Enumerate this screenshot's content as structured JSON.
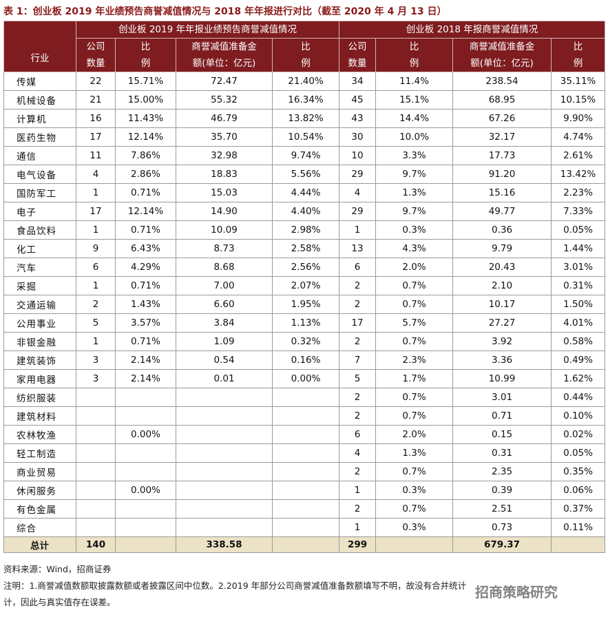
{
  "title": "表 1：创业板 2019 年业绩预告商誉减值情况与 2018 年年报进行对比（截至 2020 年 4 月 13 日）",
  "table": {
    "group_headers": [
      "创业板 2019 年年报业绩预告商誉减值情况",
      "创业板 2018 年报商誉减值情况"
    ],
    "columns": [
      [
        "行业"
      ],
      [
        "公司",
        "数量"
      ],
      [
        "比",
        "例"
      ],
      [
        "商誉减值准备金",
        "额(单位：亿元)"
      ],
      [
        "比",
        "例"
      ],
      [
        "公司",
        "数量"
      ],
      [
        "比",
        "例"
      ],
      [
        "商誉减值准备金",
        "额(单位：亿元)"
      ],
      [
        "比",
        "例"
      ]
    ],
    "rows": [
      [
        "传媒",
        "22",
        "15.71%",
        "72.47",
        "21.40%",
        "34",
        "11.4%",
        "238.54",
        "35.11%"
      ],
      [
        "机械设备",
        "21",
        "15.00%",
        "55.32",
        "16.34%",
        "45",
        "15.1%",
        "68.95",
        "10.15%"
      ],
      [
        "计算机",
        "16",
        "11.43%",
        "46.79",
        "13.82%",
        "43",
        "14.4%",
        "67.26",
        "9.90%"
      ],
      [
        "医药生物",
        "17",
        "12.14%",
        "35.70",
        "10.54%",
        "30",
        "10.0%",
        "32.17",
        "4.74%"
      ],
      [
        "通信",
        "11",
        "7.86%",
        "32.98",
        "9.74%",
        "10",
        "3.3%",
        "17.73",
        "2.61%"
      ],
      [
        "电气设备",
        "4",
        "2.86%",
        "18.83",
        "5.56%",
        "29",
        "9.7%",
        "91.20",
        "13.42%"
      ],
      [
        "国防军工",
        "1",
        "0.71%",
        "15.03",
        "4.44%",
        "4",
        "1.3%",
        "15.16",
        "2.23%"
      ],
      [
        "电子",
        "17",
        "12.14%",
        "14.90",
        "4.40%",
        "29",
        "9.7%",
        "49.77",
        "7.33%"
      ],
      [
        "食品饮料",
        "1",
        "0.71%",
        "10.09",
        "2.98%",
        "1",
        "0.3%",
        "0.36",
        "0.05%"
      ],
      [
        "化工",
        "9",
        "6.43%",
        "8.73",
        "2.58%",
        "13",
        "4.3%",
        "9.79",
        "1.44%"
      ],
      [
        "汽车",
        "6",
        "4.29%",
        "8.68",
        "2.56%",
        "6",
        "2.0%",
        "20.43",
        "3.01%"
      ],
      [
        "采掘",
        "1",
        "0.71%",
        "7.00",
        "2.07%",
        "2",
        "0.7%",
        "2.10",
        "0.31%"
      ],
      [
        "交通运输",
        "2",
        "1.43%",
        "6.60",
        "1.95%",
        "2",
        "0.7%",
        "10.17",
        "1.50%"
      ],
      [
        "公用事业",
        "5",
        "3.57%",
        "3.84",
        "1.13%",
        "17",
        "5.7%",
        "27.27",
        "4.01%"
      ],
      [
        "非银金融",
        "1",
        "0.71%",
        "1.09",
        "0.32%",
        "2",
        "0.7%",
        "3.92",
        "0.58%"
      ],
      [
        "建筑装饰",
        "3",
        "2.14%",
        "0.54",
        "0.16%",
        "7",
        "2.3%",
        "3.36",
        "0.49%"
      ],
      [
        "家用电器",
        "3",
        "2.14%",
        "0.01",
        "0.00%",
        "5",
        "1.7%",
        "10.99",
        "1.62%"
      ],
      [
        "纺织服装",
        null,
        null,
        null,
        null,
        "2",
        "0.7%",
        "3.01",
        "0.44%"
      ],
      [
        "建筑材料",
        null,
        null,
        null,
        null,
        "2",
        "0.7%",
        "0.71",
        "0.10%"
      ],
      [
        "农林牧渔",
        null,
        "0.00%",
        null,
        null,
        "6",
        "2.0%",
        "0.15",
        "0.02%"
      ],
      [
        "轻工制造",
        null,
        null,
        null,
        null,
        "4",
        "1.3%",
        "0.31",
        "0.05%"
      ],
      [
        "商业贸易",
        null,
        null,
        null,
        null,
        "2",
        "0.7%",
        "2.35",
        "0.35%"
      ],
      [
        "休闲服务",
        null,
        "0.00%",
        null,
        null,
        "1",
        "0.3%",
        "0.39",
        "0.06%"
      ],
      [
        "有色金属",
        null,
        null,
        null,
        null,
        "2",
        "0.7%",
        "2.51",
        "0.37%"
      ],
      [
        "综合",
        null,
        null,
        null,
        null,
        "1",
        "0.3%",
        "0.73",
        "0.11%"
      ]
    ],
    "total": [
      "总计",
      "140",
      null,
      "338.58",
      null,
      "299",
      null,
      "679.37",
      null
    ]
  },
  "source": "资料来源：Wind，招商证券",
  "notes": [
    "注明：1.商誉减值数额取披露数额或者披露区间中位数。2.2019 年部分公司商誉减值准备数额填写不明，故没有合并统计",
    "计，因此与真实值存在误差。"
  ],
  "watermark": "招商策略研究"
}
